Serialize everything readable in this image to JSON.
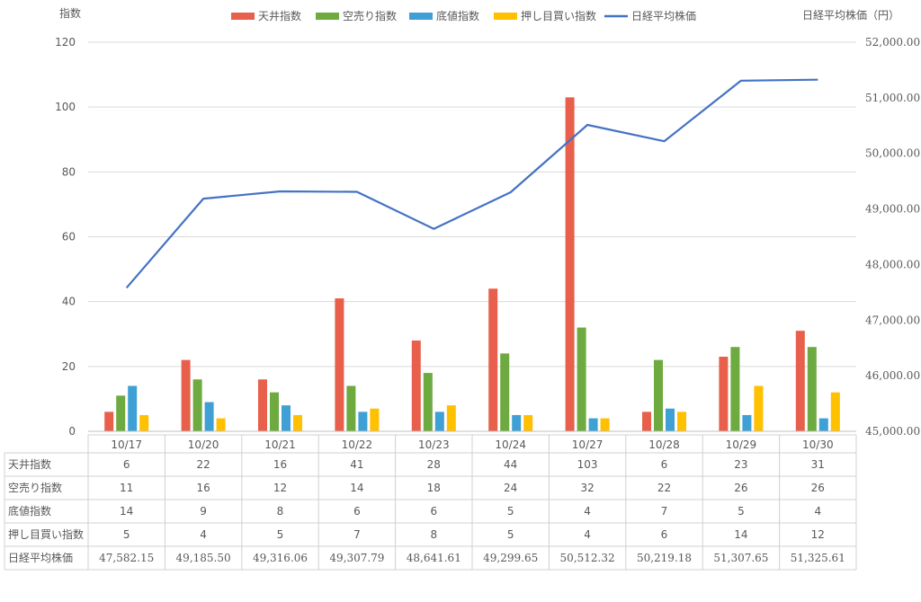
{
  "chart_data": {
    "type": "bar",
    "left_axis_label": "指数",
    "right_axis_label": "日経平均株価（円）",
    "categories": [
      "10/17",
      "10/20",
      "10/21",
      "10/22",
      "10/23",
      "10/24",
      "10/27",
      "10/28",
      "10/29",
      "10/30"
    ],
    "ylim_left": [
      0,
      120
    ],
    "yticks_left": [
      0,
      20,
      40,
      60,
      80,
      100,
      120
    ],
    "ylim_right": [
      45000,
      52000
    ],
    "yticks_right": [
      "45,000.00",
      "46,000.00",
      "47,000.00",
      "48,000.00",
      "49,000.00",
      "50,000.00",
      "51,000.00",
      "52,000.00"
    ],
    "grid": true,
    "legend_position": "top",
    "series": [
      {
        "name": "天井指数",
        "type": "bar",
        "axis": "left",
        "color": "#E8604C",
        "values": [
          6,
          22,
          16,
          41,
          28,
          44,
          103,
          6,
          23,
          31
        ],
        "labels": [
          "6",
          "22",
          "16",
          "41",
          "28",
          "44",
          "103",
          "6",
          "23",
          "31"
        ]
      },
      {
        "name": "空売り指数",
        "type": "bar",
        "axis": "left",
        "color": "#6DAA3F",
        "values": [
          11,
          16,
          12,
          14,
          18,
          24,
          32,
          22,
          26,
          26
        ],
        "labels": [
          "11",
          "16",
          "12",
          "14",
          "18",
          "24",
          "32",
          "22",
          "26",
          "26"
        ]
      },
      {
        "name": "底値指数",
        "type": "bar",
        "axis": "left",
        "color": "#3FA0D6",
        "values": [
          14,
          9,
          8,
          6,
          6,
          5,
          4,
          7,
          5,
          4
        ],
        "labels": [
          "14",
          "9",
          "8",
          "6",
          "6",
          "5",
          "4",
          "7",
          "5",
          "4"
        ]
      },
      {
        "name": "押し目買い指数",
        "type": "bar",
        "axis": "left",
        "color": "#FFC000",
        "values": [
          5,
          4,
          5,
          7,
          8,
          5,
          4,
          6,
          14,
          12
        ],
        "labels": [
          "5",
          "4",
          "5",
          "7",
          "8",
          "5",
          "4",
          "6",
          "14",
          "12"
        ]
      },
      {
        "name": "日経平均株価",
        "type": "line",
        "axis": "right",
        "color": "#4472C4",
        "values": [
          47582.15,
          49185.5,
          49316.06,
          49307.79,
          48641.61,
          49299.65,
          50512.32,
          50219.18,
          51307.65,
          51325.61
        ],
        "labels": [
          "47,582.15",
          "49,185.50",
          "49,316.06",
          "49,307.79",
          "48,641.61",
          "49,299.65",
          "50,512.32",
          "50,219.18",
          "51,307.65",
          "51,325.61"
        ]
      }
    ]
  }
}
